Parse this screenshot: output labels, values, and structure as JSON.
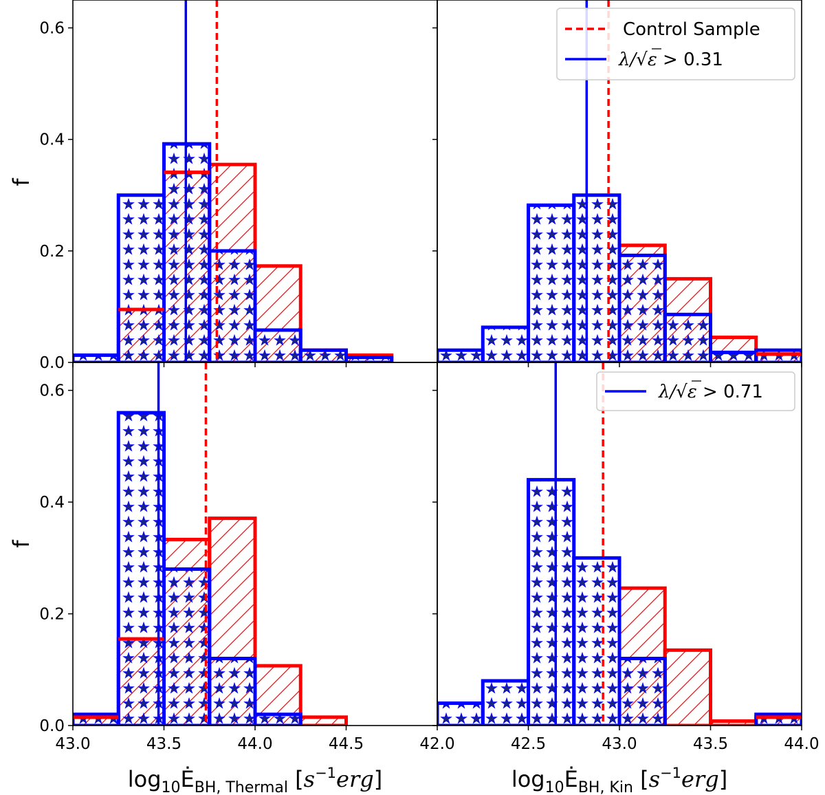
{
  "colors": {
    "control": "#ff0000",
    "selected": "#0000ff",
    "star_fill": "#1a237e"
  },
  "ylabel": "f",
  "chart_data": [
    {
      "id": "top-left",
      "type": "histogram",
      "xlim": [
        43.0,
        45.0
      ],
      "ylim": [
        0,
        0.65
      ],
      "bin_edges": [
        43.0,
        43.25,
        43.5,
        43.75,
        44.0,
        44.25,
        44.5,
        44.75,
        45.0
      ],
      "series": [
        {
          "name": "Control Sample",
          "values": [
            0.0,
            0.095,
            0.341,
            0.355,
            0.173,
            0.022,
            0.013,
            0.0
          ],
          "median": 43.79
        },
        {
          "name": "λ/√ε > 0.31",
          "values": [
            0.013,
            0.3,
            0.392,
            0.2,
            0.058,
            0.022,
            0.009,
            0.0
          ],
          "median": 43.62
        }
      ],
      "yticks": [
        "0.0",
        "0.2",
        "0.4",
        "0.6"
      ],
      "xticks": [],
      "ylabel": "f"
    },
    {
      "id": "top-right",
      "type": "histogram",
      "xlim": [
        42.0,
        44.0
      ],
      "ylim": [
        0,
        0.65
      ],
      "bin_edges": [
        42.0,
        42.25,
        42.5,
        42.75,
        43.0,
        43.25,
        43.5,
        43.75,
        44.0
      ],
      "series": [
        {
          "name": "Control Sample",
          "values": [
            0.0,
            0.0,
            0.0,
            0.0,
            0.21,
            0.15,
            0.045,
            0.015
          ],
          "median": 42.94
        },
        {
          "name": "λ/√ε > 0.31",
          "values": [
            0.022,
            0.063,
            0.282,
            0.3,
            0.192,
            0.086,
            0.018,
            0.022
          ],
          "median": 42.82
        }
      ],
      "yticks": [],
      "xticks": [],
      "legend": {
        "control_label": "Control Sample",
        "selected_label_pre": "λ/√",
        "selected_label_eps": "ε",
        "selected_label_post": " > 0.31"
      }
    },
    {
      "id": "bottom-left",
      "type": "histogram",
      "xlim": [
        43.0,
        45.0
      ],
      "ylim": [
        0,
        0.65
      ],
      "bin_edges": [
        43.0,
        43.25,
        43.5,
        43.75,
        44.0,
        44.25,
        44.5,
        44.75,
        45.0
      ],
      "series": [
        {
          "name": "Control Sample",
          "values": [
            0.015,
            0.155,
            0.333,
            0.371,
            0.107,
            0.015,
            0.0,
            0.0
          ],
          "median": 43.73
        },
        {
          "name": "λ/√ε > 0.71",
          "values": [
            0.02,
            0.56,
            0.28,
            0.12,
            0.02,
            0.0,
            0.0,
            0.0
          ],
          "median": 43.47
        }
      ],
      "yticks": [
        "0.0",
        "0.2",
        "0.4",
        "0.6"
      ],
      "xticks": [
        "43.0",
        "43.5",
        "44.0",
        "44.5"
      ],
      "ylabel": "f",
      "xlabel": {
        "pre": "log",
        "sub": "10",
        "main": "Ė",
        "main_sub": "BH, Thermal",
        "units_open": " [",
        "units": "s",
        "units_sup": "−1",
        "units_erg": "erg",
        "units_close": "]"
      }
    },
    {
      "id": "bottom-right",
      "type": "histogram",
      "xlim": [
        42.0,
        44.0
      ],
      "ylim": [
        0,
        0.65
      ],
      "bin_edges": [
        42.0,
        42.25,
        42.5,
        42.75,
        43.0,
        43.25,
        43.5,
        43.75,
        44.0
      ],
      "series": [
        {
          "name": "Control Sample",
          "values": [
            0.0,
            0.0,
            0.0,
            0.0,
            0.246,
            0.135,
            0.008,
            0.015
          ],
          "median": 42.91
        },
        {
          "name": "λ/√ε > 0.71",
          "values": [
            0.04,
            0.08,
            0.44,
            0.3,
            0.12,
            0.0,
            0.0,
            0.02
          ],
          "median": 42.65
        }
      ],
      "yticks": [],
      "xticks": [
        "42.0",
        "42.5",
        "43.0",
        "43.5",
        "44.0"
      ],
      "legend": {
        "selected_label_pre": "λ/√",
        "selected_label_eps": "ε",
        "selected_label_post": " > 0.71"
      },
      "xlabel": {
        "pre": "log",
        "sub": "10",
        "main": "Ė",
        "main_sub": "BH, Kin",
        "units_open": " [",
        "units": "s",
        "units_sup": "−1",
        "units_erg": "erg",
        "units_close": "]"
      }
    }
  ]
}
